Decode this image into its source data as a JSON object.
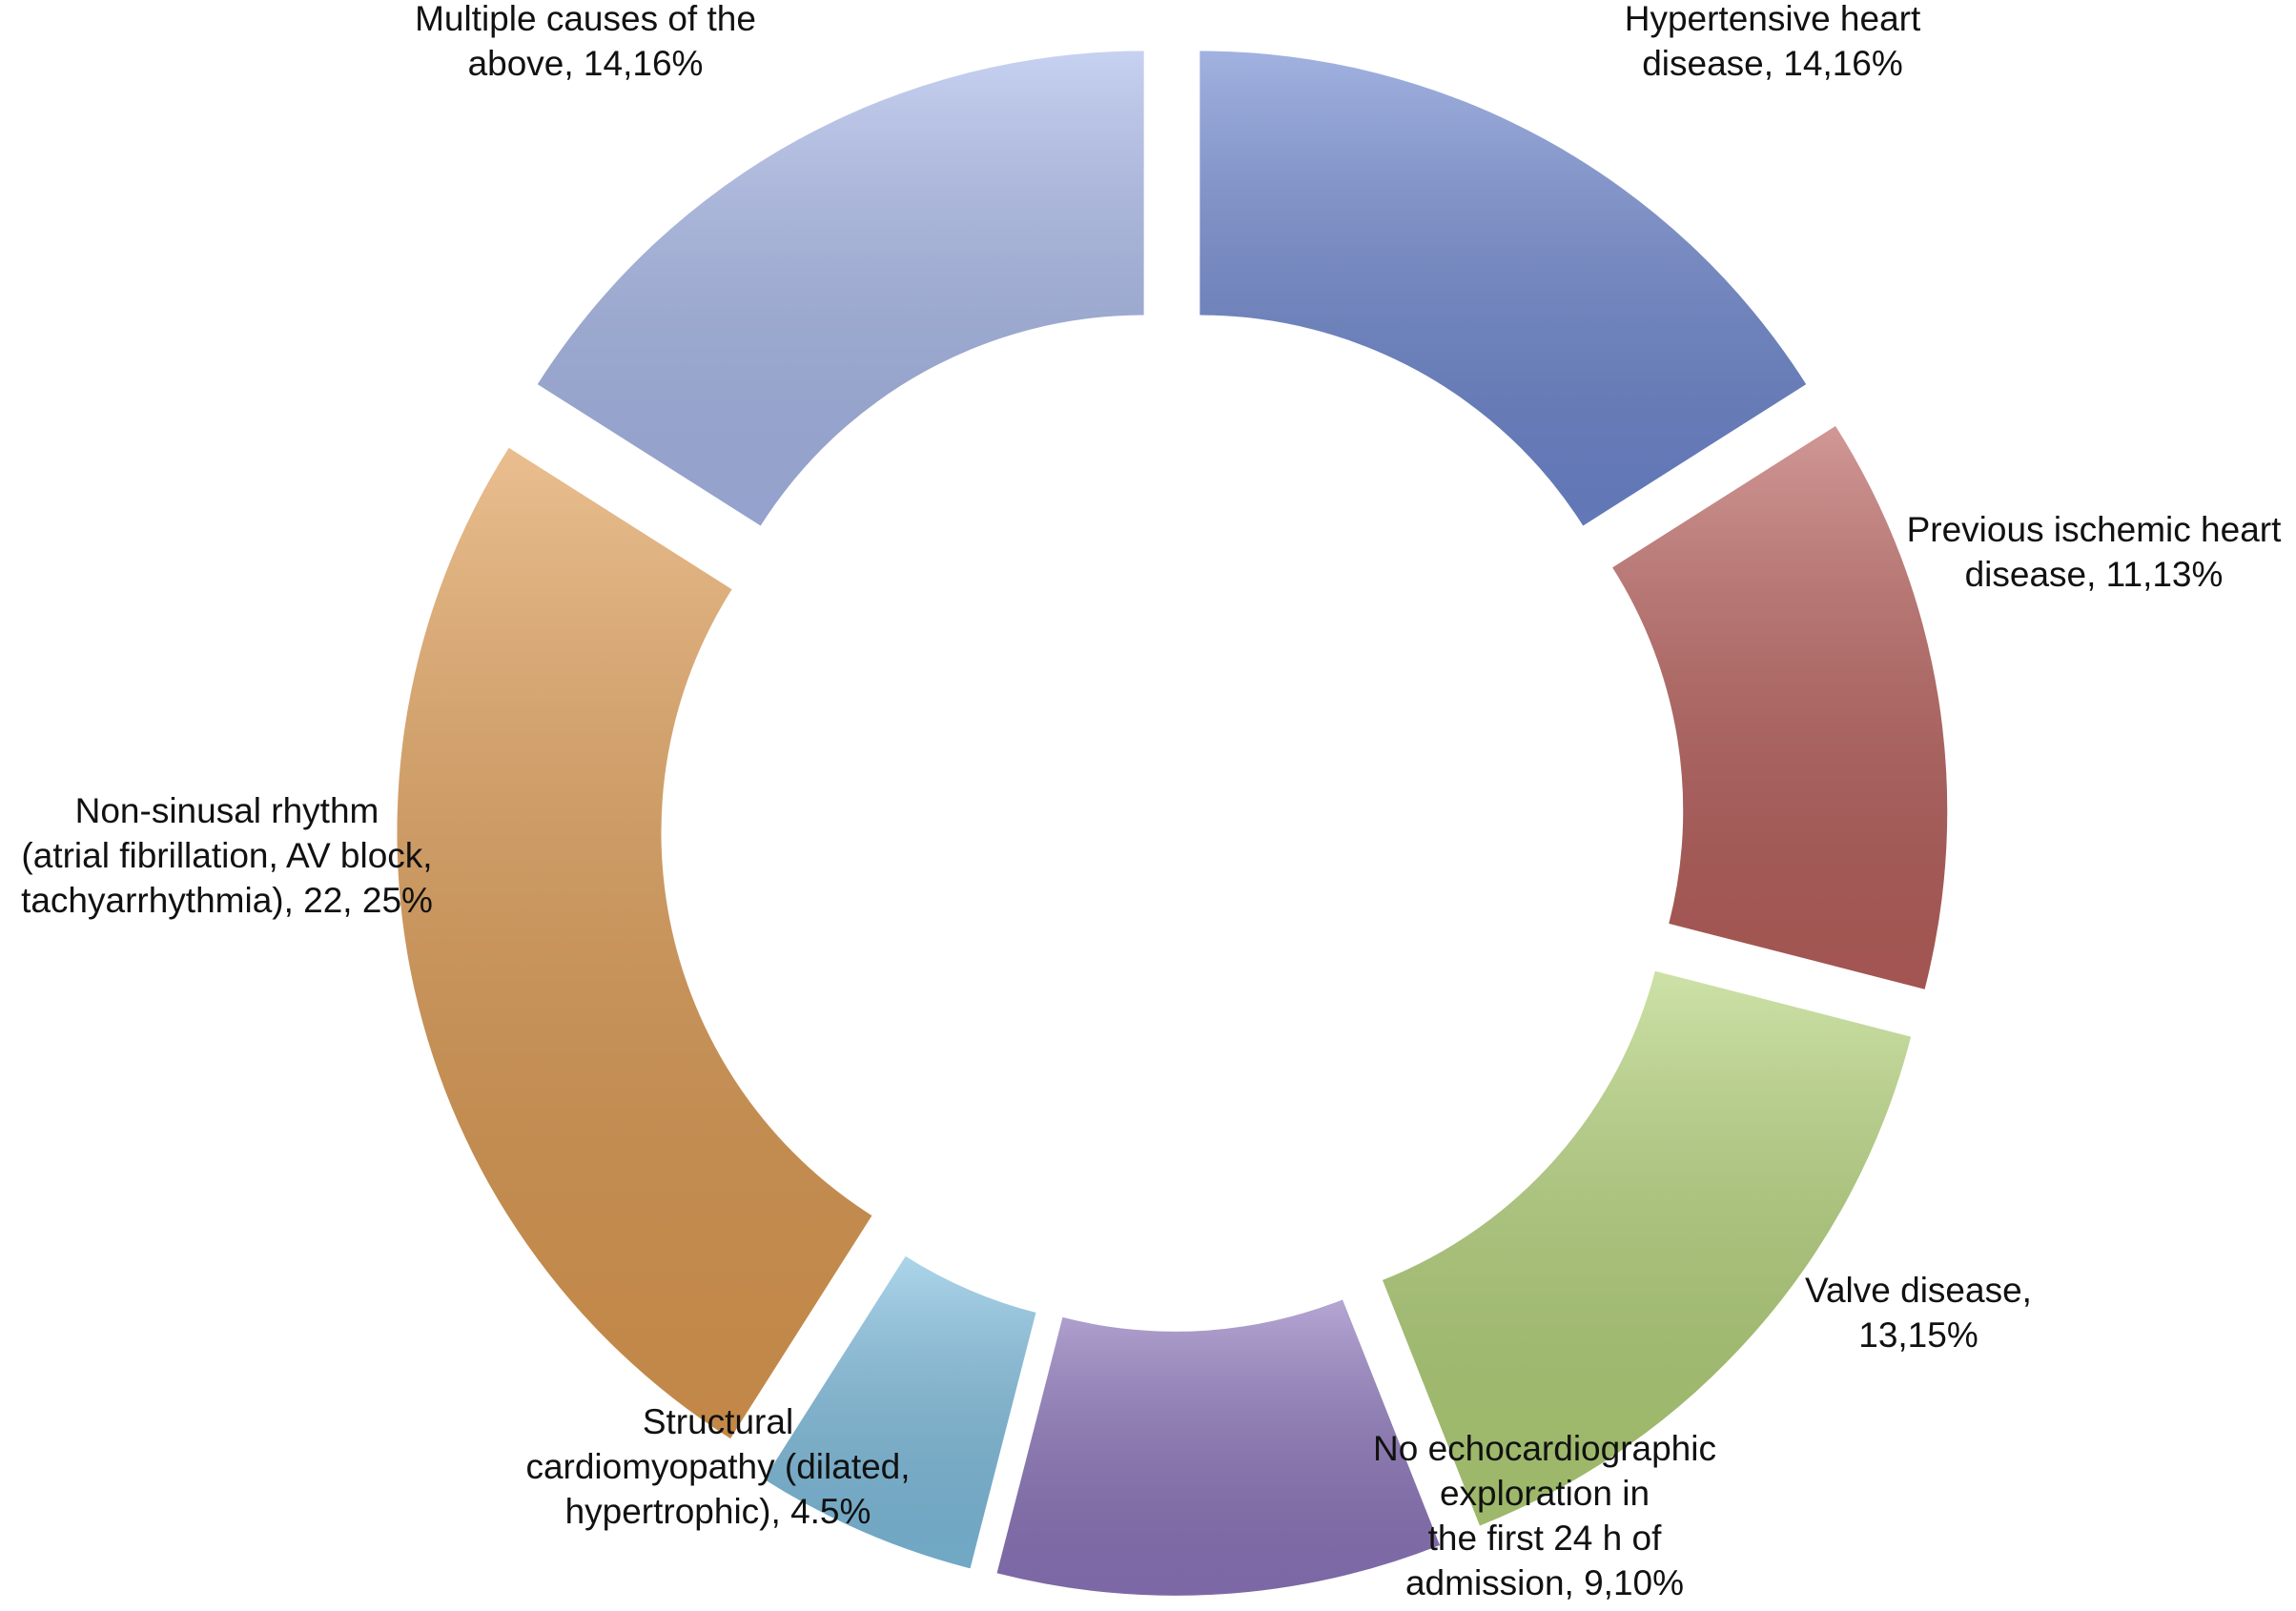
{
  "chart_data": {
    "type": "donut",
    "categories": [
      "Hypertensive heart\ndisease, 14,16%",
      "Previous ischemic heart\ndisease, 11,13%",
      "Valve disease,\n13,15%",
      "No echocardiographic\nexploration in\nthe first 24 h of\nadmission, 9,10%",
      "Structural\ncardiomyopathy (dilated,\nhypertrophic), 4.5%",
      "Non-sinusal rhythm\n(atrial fibrillation, AV block,\ntachyarrhythmia), 22, 25%",
      "Multiple causes of the\nabove, 14,16%"
    ],
    "values": [
      16,
      13,
      15,
      10,
      5,
      25,
      16
    ],
    "colors": [
      "#6f88d0",
      "#b8605c",
      "#b3d278",
      "#8d76bc",
      "#80bfe0",
      "#de9b52",
      "#a9b9ea"
    ]
  }
}
